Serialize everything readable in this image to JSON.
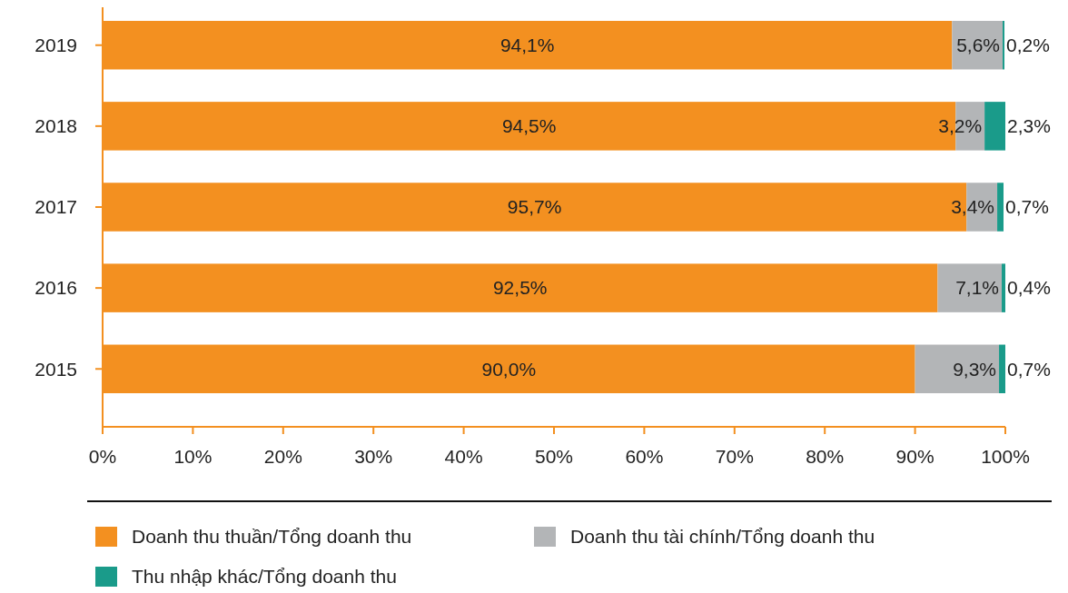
{
  "chart_data": {
    "type": "bar",
    "orientation": "horizontal",
    "stacked": true,
    "categories": [
      "2019",
      "2018",
      "2017",
      "2016",
      "2015"
    ],
    "series": [
      {
        "name": "Doanh thu thuần/Tổng doanh thu",
        "color": "#f39020",
        "values": [
          94.1,
          94.5,
          95.7,
          92.5,
          90.0
        ],
        "value_labels": [
          "94,1%",
          "94,5%",
          "95,7%",
          "92,5%",
          "90,0%"
        ]
      },
      {
        "name": "Doanh thu tài chính/Tổng doanh thu",
        "color": "#b3b5b7",
        "values": [
          5.6,
          3.2,
          3.4,
          7.1,
          9.3
        ],
        "value_labels": [
          "5,6%",
          "3,2%",
          "3,4%",
          "7,1%",
          "9,3%"
        ]
      },
      {
        "name": "Thu nhập khác/Tổng doanh thu",
        "color": "#1a9b8a",
        "values": [
          0.2,
          2.3,
          0.7,
          0.4,
          0.7
        ],
        "value_labels": [
          "0,2%",
          "2,3%",
          "0,7%",
          "0,4%",
          "0,7%"
        ]
      }
    ],
    "xlim": [
      0,
      100
    ],
    "xticks": [
      {
        "value": 0,
        "label": "0%"
      },
      {
        "value": 10,
        "label": "10%"
      },
      {
        "value": 20,
        "label": "20%"
      },
      {
        "value": 30,
        "label": "30%"
      },
      {
        "value": 40,
        "label": "40%"
      },
      {
        "value": 50,
        "label": "50%"
      },
      {
        "value": 60,
        "label": "60%"
      },
      {
        "value": 70,
        "label": "70%"
      },
      {
        "value": 80,
        "label": "80%"
      },
      {
        "value": 90,
        "label": "90%"
      },
      {
        "value": 100,
        "label": "100%"
      }
    ],
    "grid": false,
    "legend": "bottom"
  }
}
